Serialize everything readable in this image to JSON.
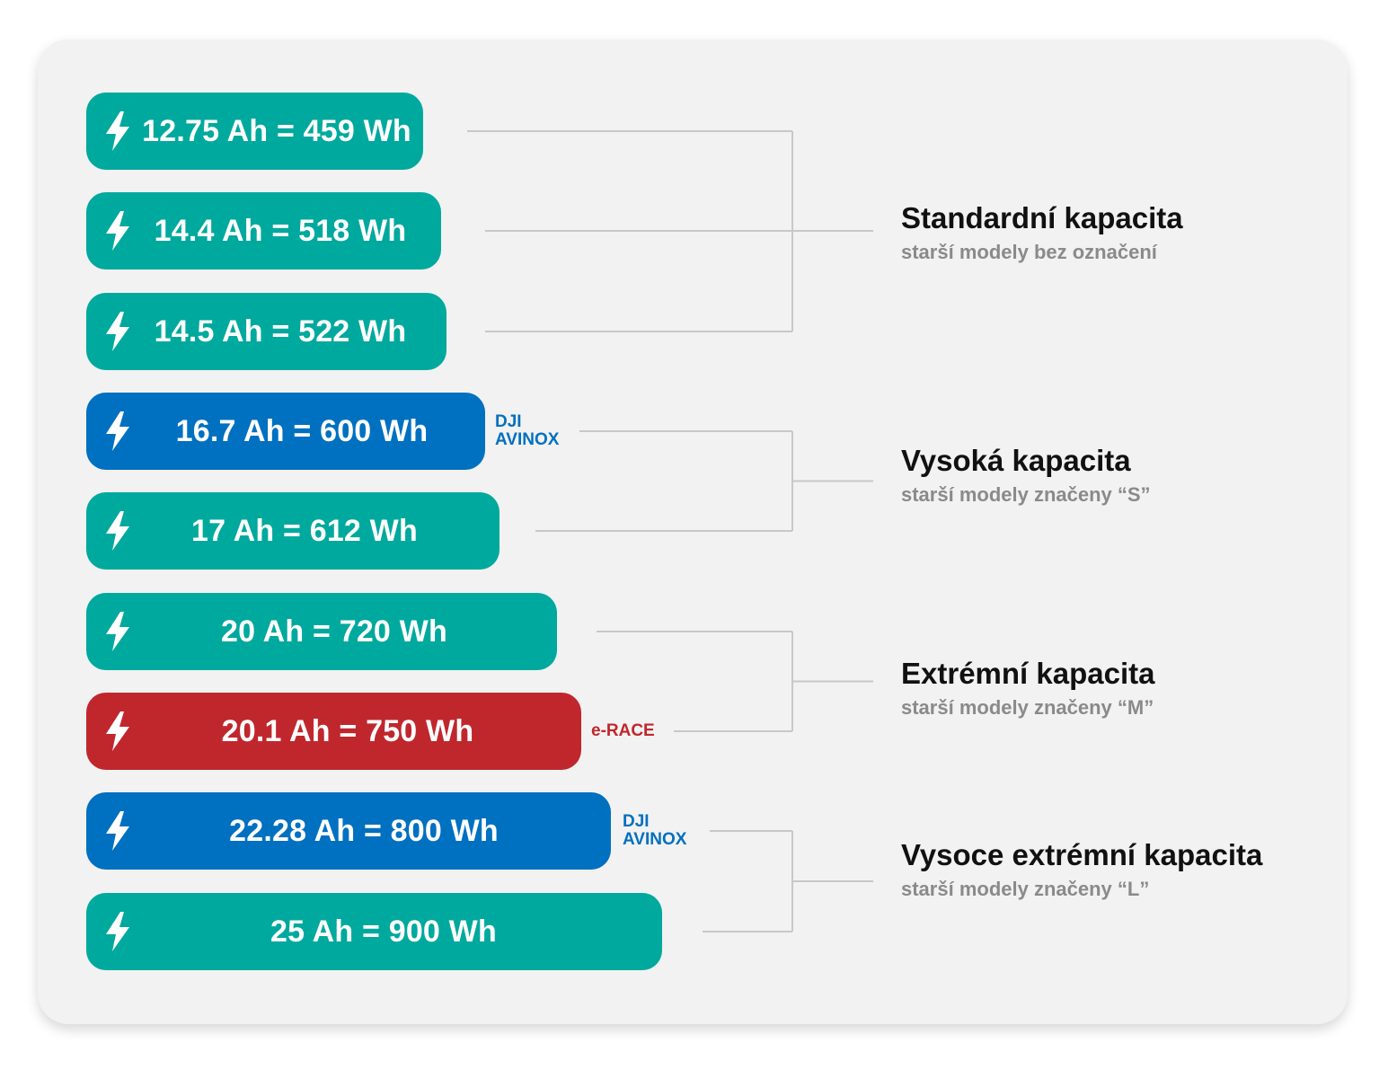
{
  "colors": {
    "teal": "#00a99d",
    "blue": "#0070c0",
    "red": "#c0272d",
    "connector": "#c8c8c8",
    "card": "#f2f2f2"
  },
  "batteries": [
    {
      "label": "12.75 Ah = 459 Wh",
      "ah": 12.75,
      "wh": 459,
      "color": "teal",
      "tag": []
    },
    {
      "label": "14.4 Ah = 518 Wh",
      "ah": 14.4,
      "wh": 518,
      "color": "teal",
      "tag": []
    },
    {
      "label": "14.5 Ah = 522 Wh",
      "ah": 14.5,
      "wh": 522,
      "color": "teal",
      "tag": []
    },
    {
      "label": "16.7 Ah = 600 Wh",
      "ah": 16.7,
      "wh": 600,
      "color": "blue",
      "tag": [
        "DJI",
        "AVINOX"
      ]
    },
    {
      "label": "17 Ah = 612 Wh",
      "ah": 17,
      "wh": 612,
      "color": "teal",
      "tag": []
    },
    {
      "label": "20 Ah = 720 Wh",
      "ah": 20,
      "wh": 720,
      "color": "teal",
      "tag": []
    },
    {
      "label": "20.1 Ah = 750 Wh",
      "ah": 20.1,
      "wh": 750,
      "color": "red",
      "tag": [
        "e-RACE"
      ]
    },
    {
      "label": "22.28 Ah = 800 Wh",
      "ah": 22.28,
      "wh": 800,
      "color": "blue",
      "tag": [
        "DJI",
        "AVINOX"
      ]
    },
    {
      "label": "25 Ah = 900 Wh",
      "ah": 25,
      "wh": 900,
      "color": "teal",
      "tag": []
    }
  ],
  "groups": [
    {
      "title": "Standardní kapacita",
      "subtitle": "starší modely bez označení"
    },
    {
      "title": "Vysoká kapacita",
      "subtitle": "starší modely značeny “S”"
    },
    {
      "title": "Extrémní kapacita",
      "subtitle": "starší modely značeny “M”"
    },
    {
      "title": "Vysoce extrémní kapacita",
      "subtitle": "starší modely značeny “L”"
    }
  ],
  "icons": {
    "battery": "lightning-bolt-icon"
  }
}
